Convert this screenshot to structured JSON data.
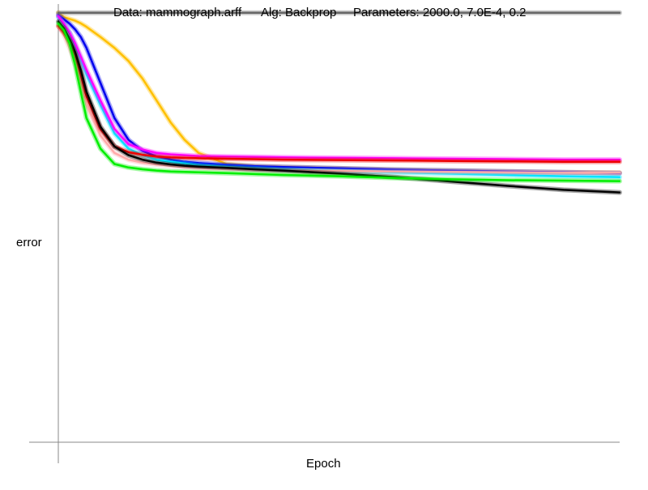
{
  "header": {
    "data_label": "Data: mammograph.arff",
    "alg_label": "Alg: Backprop",
    "params_label": "Parameters: 2000.0, 7.0E-4, 0.2"
  },
  "chart_data": {
    "type": "line",
    "title": "Data: mammograph.arff    Alg: Backprop    Parameters: 2000.0, 7.0E-4, 0.2",
    "xlabel": "Epoch",
    "ylabel": "error",
    "xlim": [
      0,
      2000
    ],
    "ylim": [
      0,
      1
    ],
    "grid": false,
    "legend": "none",
    "x": [
      0,
      20,
      40,
      60,
      80,
      100,
      150,
      200,
      250,
      300,
      350,
      400,
      450,
      500,
      600,
      700,
      800,
      1000,
      1200,
      1400,
      1600,
      1800,
      2000
    ],
    "series": [
      {
        "color": "#ffc000",
        "values": [
          0.98,
          0.97,
          0.966,
          0.962,
          0.956,
          0.948,
          0.925,
          0.9,
          0.87,
          0.83,
          0.78,
          0.73,
          0.69,
          0.66,
          0.635,
          0.63,
          0.628,
          0.625,
          0.622,
          0.62,
          0.618,
          0.616,
          0.615
        ]
      },
      {
        "color": "#0000ee",
        "values": [
          0.975,
          0.965,
          0.955,
          0.942,
          0.925,
          0.9,
          0.82,
          0.74,
          0.69,
          0.665,
          0.652,
          0.645,
          0.64,
          0.637,
          0.633,
          0.63,
          0.628,
          0.625,
          0.622,
          0.62,
          0.618,
          0.616,
          0.614
        ]
      },
      {
        "color": "#00e5ff",
        "values": [
          0.97,
          0.955,
          0.935,
          0.905,
          0.875,
          0.84,
          0.77,
          0.705,
          0.67,
          0.655,
          0.645,
          0.64,
          0.636,
          0.632,
          0.628,
          0.625,
          0.622,
          0.619,
          0.616,
          0.613,
          0.61,
          0.607,
          0.605
        ]
      },
      {
        "color": "#ff00ff",
        "values": [
          0.972,
          0.955,
          0.935,
          0.91,
          0.88,
          0.85,
          0.78,
          0.715,
          0.68,
          0.668,
          0.66,
          0.657,
          0.655,
          0.653,
          0.652,
          0.651,
          0.65,
          0.649,
          0.648,
          0.647,
          0.646,
          0.645,
          0.645
        ]
      },
      {
        "color": "#ffaaaa",
        "values": [
          0.95,
          0.93,
          0.9,
          0.865,
          0.82,
          0.77,
          0.7,
          0.66,
          0.645,
          0.638,
          0.634,
          0.631,
          0.628,
          0.626,
          0.624,
          0.622,
          0.62,
          0.619,
          0.618,
          0.617,
          0.616,
          0.615,
          0.615
        ]
      },
      {
        "color": "#ee0000",
        "values": [
          0.95,
          0.935,
          0.915,
          0.885,
          0.84,
          0.79,
          0.715,
          0.675,
          0.662,
          0.656,
          0.652,
          0.65,
          0.649,
          0.648,
          0.647,
          0.646,
          0.645,
          0.644,
          0.643,
          0.642,
          0.641,
          0.64,
          0.64
        ]
      },
      {
        "color": "#000000",
        "values": [
          0.96,
          0.945,
          0.92,
          0.89,
          0.85,
          0.8,
          0.72,
          0.675,
          0.655,
          0.645,
          0.638,
          0.634,
          0.631,
          0.629,
          0.626,
          0.623,
          0.62,
          0.613,
          0.605,
          0.595,
          0.585,
          0.576,
          0.57
        ]
      },
      {
        "color": "#00ee00",
        "values": [
          0.955,
          0.94,
          0.91,
          0.86,
          0.8,
          0.74,
          0.67,
          0.635,
          0.627,
          0.623,
          0.62,
          0.618,
          0.617,
          0.616,
          0.614,
          0.612,
          0.61,
          0.607,
          0.603,
          0.6,
          0.598,
          0.597,
          0.596
        ]
      },
      {
        "color": "#666666",
        "values": [
          0.98,
          0.98,
          0.98,
          0.98,
          0.98,
          0.98,
          0.98,
          0.98,
          0.98,
          0.98,
          0.98,
          0.98,
          0.98,
          0.98,
          0.98,
          0.98,
          0.98,
          0.98,
          0.98,
          0.98,
          0.98,
          0.98,
          0.98
        ]
      }
    ]
  }
}
